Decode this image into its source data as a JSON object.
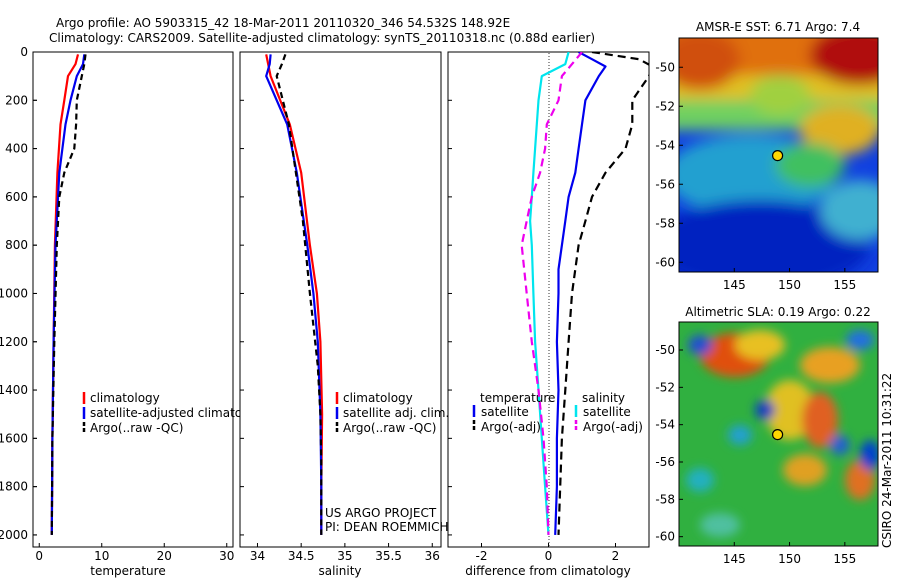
{
  "header": {
    "line1": "Argo profile: AO 5903315_42 18-Mar-2011 20110320_346 54.532S 148.92E",
    "line2": "Climatology: CARS2009. Satellite-adjusted climatology: synTS_20110318.nc (0.88d earlier)"
  },
  "side_text": "CSIRO 24-Mar-2011 10:31:22",
  "colors": {
    "red": "#ff0000",
    "blue": "#0000ee",
    "black": "#000000",
    "cyan": "#00e5ee",
    "magenta": "#ee00ee"
  },
  "chart_data": [
    {
      "type": "line",
      "id": "temperature",
      "xlabel": "temperature",
      "ylabel": "",
      "xlim": [
        -1,
        31
      ],
      "ylim": [
        0,
        2050
      ],
      "y_reversed": true,
      "xticks": [
        0,
        10,
        20,
        30
      ],
      "yticks": [
        0,
        200,
        400,
        600,
        800,
        1000,
        1200,
        1400,
        1600,
        1800,
        2000
      ],
      "series": [
        {
          "name": "climatology",
          "color": "#ff0000",
          "dash": "",
          "y": [
            10,
            50,
            100,
            200,
            300,
            500,
            800,
            1200,
            1600,
            2000
          ],
          "x": [
            6.2,
            5.8,
            4.6,
            4.0,
            3.4,
            2.9,
            2.5,
            2.3,
            2.1,
            2.0
          ]
        },
        {
          "name": "satellite-adjusted climatology",
          "color": "#0000ee",
          "dash": "",
          "y": [
            10,
            50,
            100,
            200,
            300,
            500,
            800,
            1200,
            1600,
            2000
          ],
          "x": [
            7.2,
            7.0,
            6.0,
            5.0,
            4.2,
            3.2,
            2.6,
            2.3,
            2.1,
            2.0
          ]
        },
        {
          "name": "Argo(..raw -QC)",
          "color": "#000000",
          "dash": "6,4",
          "y": [
            10,
            50,
            100,
            200,
            300,
            400,
            500,
            600,
            800,
            1200,
            1600,
            2000
          ],
          "x": [
            7.4,
            7.2,
            6.8,
            6.0,
            5.9,
            5.6,
            4.0,
            3.2,
            2.8,
            2.4,
            2.1,
            2.0
          ]
        }
      ],
      "legend": {
        "position": "lower-right",
        "entries": [
          "climatology",
          "satellite-adjusted climatology",
          "Argo(..raw -QC)"
        ]
      }
    },
    {
      "type": "line",
      "id": "salinity",
      "xlabel": "salinity",
      "xlim": [
        33.8,
        36.1
      ],
      "ylim": [
        0,
        2050
      ],
      "y_reversed": true,
      "xticks": [
        34,
        34.5,
        35,
        35.5,
        36
      ],
      "xticklabels": [
        "34",
        "34.5",
        "35",
        "35.5",
        "36"
      ],
      "series": [
        {
          "name": "climatology",
          "color": "#ff0000",
          "dash": "",
          "y": [
            10,
            100,
            300,
            500,
            800,
            1000,
            1200,
            1500,
            1800,
            2000
          ],
          "x": [
            34.1,
            34.15,
            34.37,
            34.5,
            34.6,
            34.68,
            34.72,
            34.74,
            34.73,
            34.73
          ]
        },
        {
          "name": "satellite adj. clim.",
          "color": "#0000ee",
          "dash": "",
          "y": [
            10,
            50,
            100,
            300,
            500,
            800,
            1000,
            1200,
            1500,
            1800,
            2000
          ],
          "x": [
            34.15,
            34.14,
            34.1,
            34.34,
            34.45,
            34.57,
            34.64,
            34.69,
            34.72,
            34.73,
            34.73
          ]
        },
        {
          "name": "Argo(..raw -QC)",
          "color": "#000000",
          "dash": "6,4",
          "y": [
            10,
            50,
            100,
            300,
            500,
            700,
            1000,
            1300,
            1500,
            1700,
            2000
          ],
          "x": [
            34.32,
            34.28,
            34.22,
            34.36,
            34.44,
            34.52,
            34.6,
            34.69,
            34.72,
            34.73,
            34.73
          ]
        }
      ],
      "legend": {
        "position": "lower-right",
        "entries": [
          "climatology",
          "satellite adj. clim.",
          "Argo(..raw -QC)"
        ]
      },
      "annotation": [
        "US ARGO PROJECT",
        "PI: DEAN ROEMMICH"
      ]
    },
    {
      "type": "line",
      "id": "difference",
      "xlabel": "difference from climatology",
      "xlim": [
        -3,
        3
      ],
      "ylim": [
        0,
        2050
      ],
      "y_reversed": true,
      "xticks": [
        -2,
        0,
        2
      ],
      "series": [
        {
          "name": "temperature satellite",
          "color": "#0000ee",
          "dash": "",
          "y": [
            0,
            30,
            60,
            100,
            200,
            300,
            400,
            500,
            600,
            700,
            800,
            900,
            1000,
            1200,
            1400,
            1600,
            1800,
            2000
          ],
          "x": [
            0.9,
            1.3,
            1.7,
            1.5,
            1.1,
            1.0,
            0.9,
            0.8,
            0.6,
            0.5,
            0.4,
            0.3,
            0.3,
            0.25,
            0.3,
            0.25,
            0.25,
            0.2
          ]
        },
        {
          "name": "temperature Argo(-adj)",
          "color": "#000000",
          "dash": "8,5",
          "y": [
            0,
            30,
            60,
            100,
            200,
            300,
            400,
            500,
            600,
            700,
            800,
            900,
            1000,
            1200,
            1400,
            1600,
            1800,
            2000
          ],
          "x": [
            1.3,
            2.7,
            3.1,
            3.0,
            2.5,
            2.5,
            2.3,
            1.7,
            1.3,
            1.1,
            0.9,
            0.8,
            0.7,
            0.6,
            0.5,
            0.4,
            0.35,
            0.3
          ]
        },
        {
          "name": "salinity satellite",
          "color": "#00e5ee",
          "dash": "",
          "y": [
            0,
            50,
            100,
            200,
            300,
            400,
            500,
            600,
            700,
            800,
            1000,
            1200,
            1400,
            1600,
            1800,
            2000
          ],
          "x": [
            0.6,
            0.5,
            -0.2,
            -0.3,
            -0.35,
            -0.4,
            -0.45,
            -0.5,
            -0.55,
            -0.5,
            -0.45,
            -0.4,
            -0.3,
            -0.2,
            -0.1,
            0.0
          ]
        },
        {
          "name": "salinity Argo(-adj)",
          "color": "#ee00ee",
          "dash": "8,5",
          "y": [
            0,
            50,
            100,
            200,
            300,
            400,
            500,
            600,
            700,
            800,
            1000,
            1200,
            1400,
            1600,
            1800,
            2000
          ],
          "x": [
            1.0,
            0.7,
            0.4,
            0.3,
            -0.05,
            -0.1,
            -0.25,
            -0.5,
            -0.65,
            -0.8,
            -0.65,
            -0.5,
            -0.3,
            -0.15,
            -0.05,
            0.0
          ]
        }
      ],
      "legend": {
        "position": "lower-center",
        "entries": [
          "temperature",
          "satellite",
          "Argo(-adj)",
          "salinity",
          "satellite",
          "Argo(-adj)"
        ]
      }
    },
    {
      "type": "heatmap",
      "id": "sst",
      "title": "AMSR-E SST: 6.71 Argo: 7.4",
      "xlim": [
        140,
        158
      ],
      "ylim": [
        -60.5,
        -48.5
      ],
      "xticks": [
        145,
        150,
        155
      ],
      "yticks": [
        -50,
        -52,
        -54,
        -56,
        -58,
        -60
      ],
      "marker": {
        "lon": 148.92,
        "lat": -54.53
      }
    },
    {
      "type": "heatmap",
      "id": "sla",
      "title": "Altimetric SLA: 0.19 Argo: 0.22",
      "xlim": [
        140,
        158
      ],
      "ylim": [
        -60.5,
        -48.5
      ],
      "xticks": [
        145,
        150,
        155
      ],
      "yticks": [
        -50,
        -52,
        -54,
        -56,
        -58,
        -60
      ],
      "marker": {
        "lon": 148.92,
        "lat": -54.53
      }
    }
  ]
}
